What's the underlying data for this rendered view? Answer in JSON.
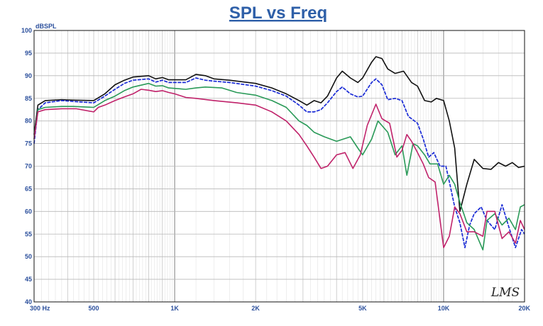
{
  "chart_data": {
    "type": "line",
    "title": "SPL vs Freq",
    "xlabel": "",
    "ylabel": "dBSPL",
    "xscale": "log",
    "xlim": [
      300,
      20000
    ],
    "ylim": [
      40,
      100
    ],
    "grid": true,
    "logo": "LMS",
    "x_tick_labels": [
      {
        "value": 300,
        "label": "300  Hz"
      },
      {
        "value": 500,
        "label": "500"
      },
      {
        "value": 1000,
        "label": "1K"
      },
      {
        "value": 2000,
        "label": "2K"
      },
      {
        "value": 5000,
        "label": "5K"
      },
      {
        "value": 10000,
        "label": "10K"
      },
      {
        "value": 20000,
        "label": "20K"
      }
    ],
    "y_ticks": [
      100,
      95,
      90,
      85,
      80,
      75,
      70,
      65,
      60,
      55,
      50,
      45,
      40
    ],
    "series": [
      {
        "color": "#111111",
        "points": [
          [
            300,
            77
          ],
          [
            310,
            83.5
          ],
          [
            330,
            84.5
          ],
          [
            380,
            84.7
          ],
          [
            420,
            84.6
          ],
          [
            500,
            84.5
          ],
          [
            550,
            86
          ],
          [
            600,
            88
          ],
          [
            650,
            89
          ],
          [
            700,
            89.7
          ],
          [
            800,
            90
          ],
          [
            850,
            89.3
          ],
          [
            900,
            89.6
          ],
          [
            950,
            89.1
          ],
          [
            1100,
            89.1
          ],
          [
            1200,
            90.3
          ],
          [
            1300,
            90
          ],
          [
            1400,
            89.3
          ],
          [
            1600,
            89
          ],
          [
            2000,
            88.3
          ],
          [
            2300,
            87.3
          ],
          [
            2600,
            86
          ],
          [
            2900,
            84.5
          ],
          [
            3100,
            83.5
          ],
          [
            3300,
            84.5
          ],
          [
            3500,
            84
          ],
          [
            3700,
            85.5
          ],
          [
            4000,
            89.5
          ],
          [
            4200,
            91
          ],
          [
            4500,
            89.5
          ],
          [
            4800,
            88.5
          ],
          [
            5000,
            89.5
          ],
          [
            5400,
            93
          ],
          [
            5600,
            94.2
          ],
          [
            5900,
            93.8
          ],
          [
            6200,
            91.5
          ],
          [
            6600,
            90.5
          ],
          [
            7100,
            91
          ],
          [
            7600,
            88.5
          ],
          [
            8000,
            87.7
          ],
          [
            8500,
            84.5
          ],
          [
            9000,
            84.2
          ],
          [
            9400,
            85
          ],
          [
            10000,
            84.5
          ],
          [
            10500,
            80
          ],
          [
            11000,
            74
          ],
          [
            11500,
            60
          ],
          [
            12200,
            66
          ],
          [
            13000,
            71.5
          ],
          [
            14000,
            69.5
          ],
          [
            15000,
            69.3
          ],
          [
            16000,
            70.8
          ],
          [
            17000,
            70
          ],
          [
            18000,
            70.8
          ],
          [
            19000,
            69.7
          ],
          [
            20000,
            70
          ]
        ]
      },
      {
        "color": "#1a2bd6",
        "points": [
          [
            300,
            75
          ],
          [
            310,
            82.5
          ],
          [
            330,
            84
          ],
          [
            380,
            84.5
          ],
          [
            420,
            84.3
          ],
          [
            500,
            84
          ],
          [
            550,
            85.5
          ],
          [
            600,
            87
          ],
          [
            650,
            88.3
          ],
          [
            700,
            89
          ],
          [
            800,
            89.3
          ],
          [
            850,
            88.6
          ],
          [
            900,
            89
          ],
          [
            950,
            88.5
          ],
          [
            1100,
            88.5
          ],
          [
            1200,
            89.5
          ],
          [
            1300,
            89
          ],
          [
            1400,
            88.8
          ],
          [
            1600,
            88.5
          ],
          [
            2000,
            87.7
          ],
          [
            2300,
            86.7
          ],
          [
            2600,
            85.5
          ],
          [
            2900,
            83.5
          ],
          [
            3100,
            82
          ],
          [
            3300,
            82
          ],
          [
            3500,
            82.5
          ],
          [
            3700,
            84
          ],
          [
            4000,
            86.5
          ],
          [
            4200,
            87.5
          ],
          [
            4500,
            86
          ],
          [
            4800,
            85.3
          ],
          [
            5000,
            85.5
          ],
          [
            5400,
            88.5
          ],
          [
            5600,
            89.3
          ],
          [
            5900,
            88
          ],
          [
            6200,
            84.7
          ],
          [
            6600,
            85
          ],
          [
            7000,
            84.5
          ],
          [
            7400,
            81
          ],
          [
            8000,
            79.5
          ],
          [
            8400,
            76
          ],
          [
            8800,
            72
          ],
          [
            9200,
            73
          ],
          [
            9700,
            70
          ],
          [
            10200,
            70
          ],
          [
            10600,
            65.5
          ],
          [
            11000,
            61
          ],
          [
            11500,
            57.5
          ],
          [
            12000,
            52
          ],
          [
            12500,
            57
          ],
          [
            13000,
            59.5
          ],
          [
            13800,
            61
          ],
          [
            14500,
            58
          ],
          [
            15500,
            56
          ],
          [
            16500,
            61.5
          ],
          [
            17500,
            56.5
          ],
          [
            18500,
            52
          ],
          [
            19500,
            56
          ],
          [
            20000,
            55
          ]
        ]
      },
      {
        "color": "#2a9a58",
        "points": [
          [
            300,
            76
          ],
          [
            310,
            82.5
          ],
          [
            330,
            83
          ],
          [
            380,
            83.2
          ],
          [
            420,
            83.2
          ],
          [
            500,
            83
          ],
          [
            550,
            84.5
          ],
          [
            600,
            85.5
          ],
          [
            650,
            86.7
          ],
          [
            700,
            87.5
          ],
          [
            800,
            88.3
          ],
          [
            850,
            87.7
          ],
          [
            900,
            87.8
          ],
          [
            950,
            87.3
          ],
          [
            1100,
            87
          ],
          [
            1200,
            87.3
          ],
          [
            1300,
            87.5
          ],
          [
            1500,
            87.3
          ],
          [
            1700,
            86.3
          ],
          [
            2000,
            85.7
          ],
          [
            2300,
            84.5
          ],
          [
            2600,
            83
          ],
          [
            2900,
            80
          ],
          [
            3100,
            79
          ],
          [
            3300,
            77.5
          ],
          [
            3600,
            76.5
          ],
          [
            4000,
            75.5
          ],
          [
            4500,
            76.5
          ],
          [
            4800,
            74
          ],
          [
            5000,
            72.5
          ],
          [
            5400,
            76
          ],
          [
            5700,
            80
          ],
          [
            6200,
            77.5
          ],
          [
            6600,
            72.5
          ],
          [
            7000,
            74.5
          ],
          [
            7300,
            68
          ],
          [
            7700,
            75
          ],
          [
            8000,
            74.5
          ],
          [
            8500,
            72.5
          ],
          [
            8900,
            70.5
          ],
          [
            9500,
            70.5
          ],
          [
            10000,
            66
          ],
          [
            10500,
            68
          ],
          [
            11000,
            66
          ],
          [
            11500,
            62
          ],
          [
            12200,
            57.5
          ],
          [
            13000,
            56
          ],
          [
            14000,
            51.5
          ],
          [
            14500,
            58
          ],
          [
            15500,
            59.5
          ],
          [
            16500,
            57
          ],
          [
            17500,
            58.5
          ],
          [
            18500,
            56
          ],
          [
            19300,
            61
          ],
          [
            20000,
            61.5
          ]
        ]
      },
      {
        "color": "#c0226a",
        "points": [
          [
            300,
            76
          ],
          [
            310,
            82
          ],
          [
            330,
            82.5
          ],
          [
            380,
            82.7
          ],
          [
            430,
            82.7
          ],
          [
            500,
            82
          ],
          [
            520,
            83
          ],
          [
            550,
            83.5
          ],
          [
            600,
            84.5
          ],
          [
            650,
            85.3
          ],
          [
            700,
            86
          ],
          [
            750,
            87
          ],
          [
            800,
            86.8
          ],
          [
            850,
            86.5
          ],
          [
            900,
            86.7
          ],
          [
            950,
            86.3
          ],
          [
            1000,
            86
          ],
          [
            1100,
            85.2
          ],
          [
            1200,
            85
          ],
          [
            1400,
            84.5
          ],
          [
            1700,
            84
          ],
          [
            2000,
            83.5
          ],
          [
            2300,
            82
          ],
          [
            2600,
            80
          ],
          [
            2900,
            77
          ],
          [
            3100,
            74.5
          ],
          [
            3300,
            72
          ],
          [
            3500,
            69.5
          ],
          [
            3700,
            70
          ],
          [
            4000,
            72.5
          ],
          [
            4300,
            73
          ],
          [
            4600,
            69.5
          ],
          [
            4900,
            72.5
          ],
          [
            5200,
            79
          ],
          [
            5600,
            83.7
          ],
          [
            5900,
            80.5
          ],
          [
            6300,
            79.5
          ],
          [
            6700,
            72
          ],
          [
            7000,
            73.5
          ],
          [
            7300,
            77
          ],
          [
            7600,
            75.5
          ],
          [
            8000,
            73
          ],
          [
            8400,
            70.5
          ],
          [
            8800,
            67.5
          ],
          [
            9300,
            66.5
          ],
          [
            10000,
            52
          ],
          [
            10500,
            54.5
          ],
          [
            11000,
            61
          ],
          [
            11500,
            59.5
          ],
          [
            12200,
            55.5
          ],
          [
            13000,
            55.5
          ],
          [
            14000,
            54.5
          ],
          [
            14500,
            60
          ],
          [
            15500,
            60
          ],
          [
            16500,
            54
          ],
          [
            17500,
            55.5
          ],
          [
            18500,
            53
          ],
          [
            19300,
            58
          ],
          [
            20000,
            56
          ]
        ]
      }
    ]
  }
}
